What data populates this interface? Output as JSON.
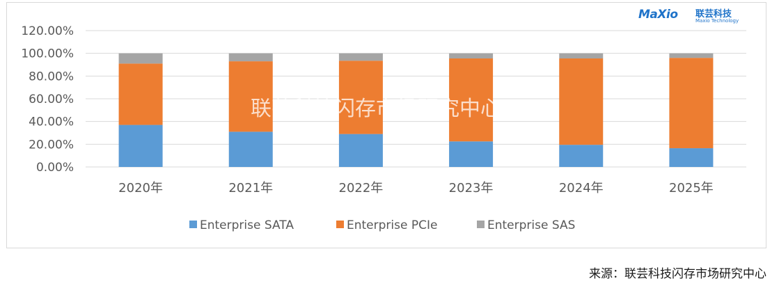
{
  "logo": {
    "mark": "MaXio",
    "name_cn": "联芸科技",
    "name_en": "Maxio Technology"
  },
  "watermark": "联芸科技闪存市场研究中心",
  "source": "来源：联芸科技闪存市场研究中心",
  "colors": {
    "sata": "#5b9bd5",
    "pcie": "#ed7d31",
    "sas": "#a5a5a5",
    "grid": "#d9d9d9",
    "text": "#595959"
  },
  "chart_data": {
    "type": "bar",
    "stacked": true,
    "categories": [
      "2020年",
      "2021年",
      "2022年",
      "2023年",
      "2024年",
      "2025年"
    ],
    "series": [
      {
        "name": "Enterprise SATA",
        "values": [
          37,
          31,
          29,
          22.5,
          19.5,
          16.5
        ]
      },
      {
        "name": "Enterprise PCIe",
        "values": [
          54,
          62,
          64.5,
          73,
          76,
          79.5
        ]
      },
      {
        "name": "Enterprise SAS",
        "values": [
          9,
          7,
          6.5,
          4.5,
          4.5,
          4
        ]
      }
    ],
    "yticks": [
      "0.00%",
      "20.00%",
      "40.00%",
      "60.00%",
      "80.00%",
      "100.00%",
      "120.00%"
    ],
    "ylim": [
      0,
      120
    ],
    "grid": true,
    "legend_position": "bottom"
  }
}
